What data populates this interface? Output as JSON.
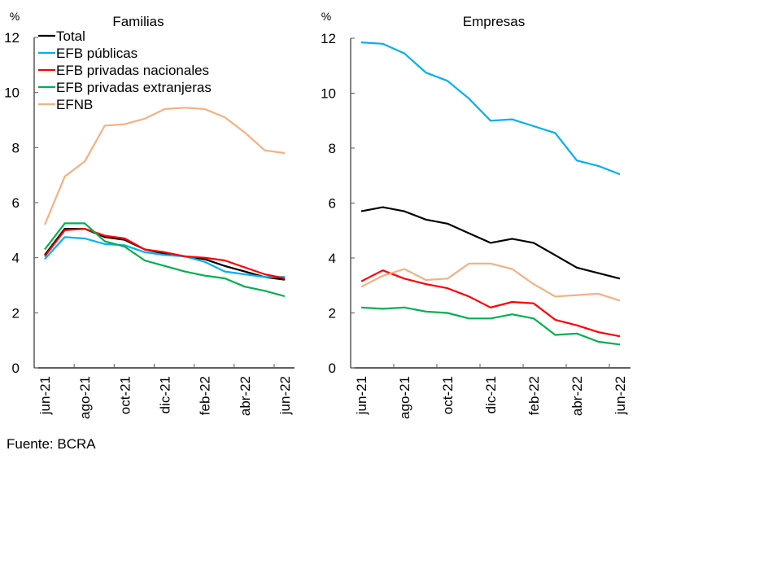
{
  "source": "Fuente: BCRA",
  "chart_data": [
    {
      "type": "line",
      "title": "Familias",
      "ylabel": "%",
      "xlabel": "",
      "ylim": [
        0,
        12
      ],
      "yticks": [
        0,
        2,
        4,
        6,
        8,
        10,
        12
      ],
      "x": [
        "jun-21",
        "jul-21",
        "ago-21",
        "sep-21",
        "oct-21",
        "nov-21",
        "dic-21",
        "ene-22",
        "feb-22",
        "mar-22",
        "abr-22",
        "may-22",
        "jun-22"
      ],
      "xtick_labels": [
        "jun-21",
        "ago-21",
        "oct-21",
        "dic-21",
        "feb-22",
        "abr-22",
        "jun-22"
      ],
      "legend": "top-left",
      "series": [
        {
          "name": "Total",
          "color": "#000000",
          "values": [
            4.1,
            5.05,
            5.05,
            4.75,
            4.65,
            4.3,
            4.15,
            4.05,
            3.95,
            3.7,
            3.5,
            3.3,
            3.2
          ]
        },
        {
          "name": "EFB públicas",
          "color": "#00b0f0",
          "values": [
            3.95,
            4.75,
            4.7,
            4.5,
            4.45,
            4.2,
            4.1,
            4.05,
            3.85,
            3.5,
            3.4,
            3.3,
            3.3
          ]
        },
        {
          "name": "EFB privadas nacionales",
          "color": "#ff0000",
          "values": [
            4.05,
            5.0,
            5.05,
            4.8,
            4.7,
            4.3,
            4.2,
            4.05,
            4.0,
            3.9,
            3.65,
            3.4,
            3.25
          ]
        },
        {
          "name": "EFB privadas extranjeras",
          "color": "#00b050",
          "values": [
            4.3,
            5.25,
            5.25,
            4.6,
            4.4,
            3.9,
            3.7,
            3.5,
            3.35,
            3.25,
            2.95,
            2.8,
            2.6
          ]
        },
        {
          "name": "EFNB",
          "color": "#f4b183",
          "values": [
            5.2,
            6.95,
            7.5,
            8.8,
            8.85,
            9.05,
            9.4,
            9.45,
            9.4,
            9.1,
            8.55,
            7.9,
            7.8
          ]
        }
      ]
    },
    {
      "type": "line",
      "title": "Empresas",
      "ylabel": "%",
      "xlabel": "",
      "ylim": [
        0,
        12
      ],
      "yticks": [
        0,
        2,
        4,
        6,
        8,
        10,
        12
      ],
      "x": [
        "jun-21",
        "jul-21",
        "ago-21",
        "sep-21",
        "oct-21",
        "nov-21",
        "dic-21",
        "ene-22",
        "feb-22",
        "mar-22",
        "abr-22",
        "may-22",
        "jun-22"
      ],
      "xtick_labels": [
        "jun-21",
        "ago-21",
        "oct-21",
        "dic-21",
        "feb-22",
        "abr-22",
        "jun-22"
      ],
      "series": [
        {
          "name": "Total",
          "color": "#000000",
          "values": [
            5.7,
            5.85,
            5.7,
            5.4,
            5.25,
            4.9,
            4.55,
            4.7,
            4.55,
            4.1,
            3.65,
            3.45,
            3.25
          ]
        },
        {
          "name": "EFB públicas",
          "color": "#00b0f0",
          "values": [
            11.85,
            11.8,
            11.45,
            10.75,
            10.45,
            9.8,
            9.0,
            9.05,
            8.8,
            8.55,
            7.55,
            7.35,
            7.05
          ]
        },
        {
          "name": "EFB privadas nacionales",
          "color": "#ff0000",
          "values": [
            3.15,
            3.55,
            3.25,
            3.05,
            2.9,
            2.6,
            2.2,
            2.4,
            2.35,
            1.75,
            1.55,
            1.3,
            1.15
          ]
        },
        {
          "name": "EFB privadas extranjeras",
          "color": "#00b050",
          "values": [
            2.2,
            2.15,
            2.2,
            2.05,
            2.0,
            1.8,
            1.8,
            1.95,
            1.8,
            1.2,
            1.25,
            0.95,
            0.85
          ]
        },
        {
          "name": "EFNB",
          "color": "#f4b183",
          "values": [
            2.95,
            3.35,
            3.6,
            3.2,
            3.25,
            3.8,
            3.8,
            3.6,
            3.05,
            2.6,
            2.65,
            2.7,
            2.45
          ]
        }
      ]
    }
  ]
}
